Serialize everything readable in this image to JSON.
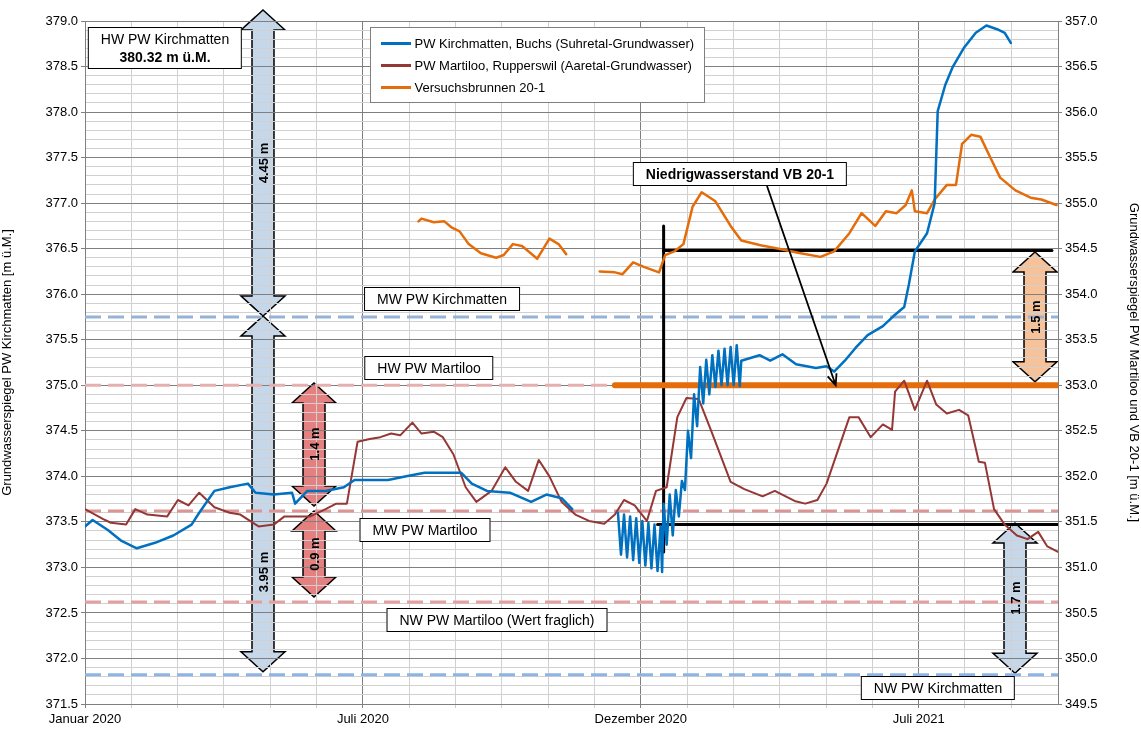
{
  "chart_data": {
    "type": "line",
    "xlabel": null,
    "ylabel": "Grundwasserspiegel PW Kirchmatten [m ü.M.]",
    "y2label": "Grundwasserspiegel PW Martiloo und VB 20-1 [m ü.M.]",
    "xlim": [
      "2020-01-01",
      "2021-10-01"
    ],
    "xticks": [
      {
        "value": "2020-01-01",
        "label": "Januar 2020"
      },
      {
        "value": "2020-01-31T10:00",
        "label": null
      },
      {
        "value": "2020-03-01T20:00",
        "label": null
      },
      {
        "value": "2020-04-01T06:00",
        "label": null
      },
      {
        "value": "2020-05-01T16:00",
        "label": null
      },
      {
        "value": "2020-06-01T02:00",
        "label": null
      },
      {
        "value": "2020-07-01T12:00",
        "label": "Juli 2020"
      },
      {
        "value": "2020-07-31T22:00",
        "label": null
      },
      {
        "value": "2020-08-31T08:00",
        "label": null
      },
      {
        "value": "2020-09-30T18:00",
        "label": null
      },
      {
        "value": "2020-10-31T04:00",
        "label": null
      },
      {
        "value": "2020-11-30T14:00",
        "label": null
      },
      {
        "value": "2020-12-31",
        "label": "Dezember 2020"
      },
      {
        "value": "2021-01-30T10:00",
        "label": null
      },
      {
        "value": "2021-03-01T20:00",
        "label": null
      },
      {
        "value": "2021-04-01T06:00",
        "label": null
      },
      {
        "value": "2021-05-01T16:00",
        "label": null
      },
      {
        "value": "2021-06-01T02:00",
        "label": null
      },
      {
        "value": "2021-07-01T12:00",
        "label": "Juli 2021"
      },
      {
        "value": "2021-07-31T22:00",
        "label": null
      },
      {
        "value": "2021-08-31T08:00",
        "label": null
      }
    ],
    "ylim": [
      371.5,
      379.0
    ],
    "yticks": [
      {
        "value": 371.5,
        "label": "371.5"
      },
      {
        "value": 371.6,
        "label": null
      },
      {
        "value": 371.7,
        "label": null
      },
      {
        "value": 371.8,
        "label": null
      },
      {
        "value": 371.9,
        "label": null
      },
      {
        "value": 372.0,
        "label": "372.0"
      },
      {
        "value": 372.1,
        "label": null
      },
      {
        "value": 372.2,
        "label": null
      },
      {
        "value": 372.3,
        "label": null
      },
      {
        "value": 372.4,
        "label": null
      },
      {
        "value": 372.5,
        "label": "372.5"
      },
      {
        "value": 372.6,
        "label": null
      },
      {
        "value": 372.7,
        "label": null
      },
      {
        "value": 372.8,
        "label": null
      },
      {
        "value": 372.9,
        "label": null
      },
      {
        "value": 373.0,
        "label": "373.0"
      },
      {
        "value": 373.1,
        "label": null
      },
      {
        "value": 373.2,
        "label": null
      },
      {
        "value": 373.3,
        "label": null
      },
      {
        "value": 373.4,
        "label": null
      },
      {
        "value": 373.5,
        "label": "373.5"
      },
      {
        "value": 373.6,
        "label": null
      },
      {
        "value": 373.7,
        "label": null
      },
      {
        "value": 373.8,
        "label": null
      },
      {
        "value": 373.9,
        "label": null
      },
      {
        "value": 374.0,
        "label": "374.0"
      },
      {
        "value": 374.1,
        "label": null
      },
      {
        "value": 374.2,
        "label": null
      },
      {
        "value": 374.3,
        "label": null
      },
      {
        "value": 374.4,
        "label": null
      },
      {
        "value": 374.5,
        "label": "374.5"
      },
      {
        "value": 374.6,
        "label": null
      },
      {
        "value": 374.7,
        "label": null
      },
      {
        "value": 374.8,
        "label": null
      },
      {
        "value": 374.9,
        "label": null
      },
      {
        "value": 375.0,
        "label": "375.0"
      },
      {
        "value": 375.1,
        "label": null
      },
      {
        "value": 375.2,
        "label": null
      },
      {
        "value": 375.3,
        "label": null
      },
      {
        "value": 375.4,
        "label": null
      },
      {
        "value": 375.5,
        "label": "375.5"
      },
      {
        "value": 375.6,
        "label": null
      },
      {
        "value": 375.7,
        "label": null
      },
      {
        "value": 375.8,
        "label": null
      },
      {
        "value": 375.9,
        "label": null
      },
      {
        "value": 376.0,
        "label": "376.0"
      },
      {
        "value": 376.1,
        "label": null
      },
      {
        "value": 376.2,
        "label": null
      },
      {
        "value": 376.3,
        "label": null
      },
      {
        "value": 376.4,
        "label": null
      },
      {
        "value": 376.5,
        "label": "376.5"
      },
      {
        "value": 376.6,
        "label": null
      },
      {
        "value": 376.7,
        "label": null
      },
      {
        "value": 376.8,
        "label": null
      },
      {
        "value": 376.9,
        "label": null
      },
      {
        "value": 377.0,
        "label": "377.0"
      },
      {
        "value": 377.1,
        "label": null
      },
      {
        "value": 377.2,
        "label": null
      },
      {
        "value": 377.3,
        "label": null
      },
      {
        "value": 377.4,
        "label": null
      },
      {
        "value": 377.5,
        "label": "377.5"
      },
      {
        "value": 377.6,
        "label": null
      },
      {
        "value": 377.7,
        "label": null
      },
      {
        "value": 377.8,
        "label": null
      },
      {
        "value": 377.9,
        "label": null
      },
      {
        "value": 378.0,
        "label": "378.0"
      },
      {
        "value": 378.1,
        "label": null
      },
      {
        "value": 378.2,
        "label": null
      },
      {
        "value": 378.3,
        "label": null
      },
      {
        "value": 378.4,
        "label": null
      },
      {
        "value": 378.5,
        "label": "378.5"
      },
      {
        "value": 378.6,
        "label": null
      },
      {
        "value": 378.7,
        "label": null
      },
      {
        "value": 378.8,
        "label": null
      },
      {
        "value": 378.9,
        "label": null
      },
      {
        "value": 379.0,
        "label": "379.0"
      }
    ],
    "y2lim": [
      349.5,
      357.0
    ],
    "y2ticks": [
      {
        "value": 349.5,
        "label": "349.5"
      },
      {
        "value": 350.0,
        "label": "350.0"
      },
      {
        "value": 350.5,
        "label": "350.5"
      },
      {
        "value": 351.0,
        "label": "351.0"
      },
      {
        "value": 351.5,
        "label": "351.5"
      },
      {
        "value": 352.0,
        "label": "352.0"
      },
      {
        "value": 352.5,
        "label": "352.5"
      },
      {
        "value": 353.0,
        "label": "353.0"
      },
      {
        "value": 353.5,
        "label": "353.5"
      },
      {
        "value": 354.0,
        "label": "354.0"
      },
      {
        "value": 354.5,
        "label": "354.5"
      },
      {
        "value": 355.0,
        "label": "355.0"
      },
      {
        "value": 355.5,
        "label": "355.5"
      },
      {
        "value": 356.0,
        "label": "356.0"
      },
      {
        "value": 356.5,
        "label": "356.5"
      },
      {
        "value": 357.0,
        "label": "357.0"
      }
    ],
    "grid": true,
    "legend": "top",
    "marker": "none",
    "line_style": "solid",
    "series": [
      {
        "name": "PW Kirchmatten, Buchs (Suhretal-Grundwasser)",
        "color": "#0070c0",
        "axis": "y",
        "x": [
          "2020-01-01",
          "2020-01-06",
          "2020-01-16",
          "2020-01-25",
          "2020-02-04",
          "2020-02-16",
          "2020-02-28",
          "2020-03-11",
          "2020-03-16",
          "2020-03-26",
          "2020-04-05",
          "2020-04-17",
          "2020-04-22",
          "2020-05-04",
          "2020-05-16",
          "2020-05-18",
          "2020-05-26",
          "2020-06-07",
          "2020-06-19",
          "2020-06-26",
          "2020-07-06",
          "2020-07-18",
          "2020-07-30",
          "2020-08-11",
          "2020-08-23",
          "2020-09-04",
          "2020-09-11",
          "2020-09-21",
          "2020-10-06",
          "2020-10-20",
          "2020-10-30",
          "2020-11-09",
          "2020-11-16",
          "2020-12-01",
          "2020-12-16",
          "2020-12-18",
          "2020-12-20",
          "2020-12-22",
          "2020-12-24",
          "2020-12-26",
          "2020-12-28",
          "2020-12-30",
          "2021-01-01",
          "2021-01-03",
          "2021-01-05",
          "2021-01-07",
          "2021-01-09",
          "2021-01-11",
          "2021-01-13",
          "2021-01-14",
          "2021-01-15",
          "2021-01-17",
          "2021-01-19",
          "2021-01-21",
          "2021-01-23",
          "2021-01-25",
          "2021-01-27",
          "2021-01-29",
          "2021-01-31",
          "2021-02-02",
          "2021-02-04",
          "2021-02-06",
          "2021-02-08",
          "2021-02-10",
          "2021-02-12",
          "2021-02-14",
          "2021-02-16",
          "2021-02-18",
          "2021-02-20",
          "2021-02-22",
          "2021-02-24",
          "2021-02-26",
          "2021-02-28",
          "2021-03-02",
          "2021-03-04",
          "2021-03-06",
          "2021-03-07",
          "2021-03-19",
          "2021-03-26",
          "2021-04-03",
          "2021-04-12",
          "2021-04-25",
          "2021-05-02",
          "2021-05-07",
          "2021-05-14",
          "2021-05-21",
          "2021-05-29",
          "2021-06-08",
          "2021-06-15",
          "2021-06-22",
          "2021-06-25",
          "2021-06-29",
          "2021-07-07",
          "2021-07-12",
          "2021-07-14",
          "2021-07-19",
          "2021-07-24",
          "2021-07-31",
          "2021-08-08",
          "2021-08-15",
          "2021-08-22",
          "2021-08-27",
          "2021-08-31"
        ],
        "values": [
          373.45,
          373.52,
          373.41,
          373.29,
          373.21,
          373.27,
          373.35,
          373.47,
          373.6,
          373.84,
          373.88,
          373.92,
          373.82,
          373.8,
          373.82,
          373.7,
          373.84,
          373.84,
          373.88,
          373.96,
          373.96,
          373.96,
          374.0,
          374.04,
          374.04,
          374.04,
          373.92,
          373.84,
          373.82,
          373.72,
          373.8,
          373.76,
          373.64,
          null,
          373.6,
          373.14,
          373.58,
          373.11,
          373.56,
          373.08,
          373.54,
          373.05,
          373.51,
          373.02,
          373.49,
          372.99,
          373.47,
          372.96,
          373.45,
          372.95,
          373.7,
          373.25,
          373.8,
          373.35,
          373.85,
          373.56,
          373.95,
          373.85,
          374.5,
          374.2,
          374.9,
          374.55,
          375.2,
          374.8,
          375.28,
          374.9,
          375.33,
          374.98,
          375.38,
          375.0,
          375.4,
          375.0,
          375.42,
          375.0,
          375.44,
          374.99,
          375.27,
          375.33,
          375.27,
          375.34,
          375.23,
          375.19,
          375.21,
          375.15,
          375.27,
          375.41,
          375.55,
          375.65,
          375.76,
          375.86,
          376.1,
          376.47,
          376.67,
          377.0,
          378.01,
          378.3,
          378.5,
          378.7,
          378.87,
          378.95,
          378.91,
          378.87,
          378.76
        ]
      },
      {
        "name": "PW Martiloo, Rupperswil (Aaretal-Grundwasser)",
        "color": "#953735",
        "axis": "y2",
        "x": [
          "2020-01-01",
          "2020-01-13",
          "2020-01-18",
          "2020-01-28",
          "2020-02-03",
          "2020-02-11",
          "2020-02-24",
          "2020-03-02",
          "2020-03-09",
          "2020-03-16",
          "2020-03-26",
          "2020-04-05",
          "2020-04-12",
          "2020-04-24",
          "2020-05-04",
          "2020-05-11",
          "2020-05-28",
          "2020-06-07",
          "2020-06-14",
          "2020-06-21",
          "2020-06-28",
          "2020-07-06",
          "2020-07-13",
          "2020-07-20",
          "2020-07-26",
          "2020-08-03",
          "2020-08-09",
          "2020-08-17",
          "2020-08-23",
          "2020-08-30",
          "2020-09-07",
          "2020-09-14",
          "2020-09-24",
          "2020-10-03",
          "2020-10-10",
          "2020-10-18",
          "2020-10-25",
          "2020-11-01",
          "2020-11-09",
          "2020-11-18",
          "2020-11-27",
          "2020-12-07",
          "2020-12-14",
          "2020-12-20",
          "2020-12-27",
          "2021-01-04",
          "2021-01-10",
          "2021-01-17",
          "2021-01-24",
          "2021-01-30",
          "2021-02-07",
          "2021-02-15",
          "2021-02-28",
          "2021-03-09",
          "2021-03-21",
          "2021-03-29",
          "2021-04-11",
          "2021-04-18",
          "2021-04-26",
          "2021-05-02",
          "2021-05-17",
          "2021-05-23",
          "2021-05-31",
          "2021-06-08",
          "2021-06-14",
          "2021-06-16",
          "2021-06-22",
          "2021-06-29",
          "2021-07-07",
          "2021-07-13",
          "2021-07-20",
          "2021-07-28",
          "2021-08-03",
          "2021-08-10",
          "2021-08-14",
          "2021-08-20",
          "2021-08-27",
          "2021-09-04",
          "2021-09-11",
          "2021-09-18",
          "2021-09-24",
          "2021-10-01"
        ],
        "values": [
          351.64,
          351.53,
          351.49,
          351.47,
          351.64,
          351.58,
          351.56,
          351.74,
          351.68,
          351.82,
          351.66,
          351.6,
          351.58,
          351.45,
          351.47,
          351.56,
          351.56,
          351.64,
          351.7,
          351.7,
          352.38,
          352.41,
          352.43,
          352.47,
          352.45,
          352.59,
          352.47,
          352.49,
          352.43,
          352.24,
          351.88,
          351.72,
          351.84,
          352.1,
          351.94,
          351.84,
          352.18,
          352.0,
          351.72,
          351.58,
          351.51,
          351.48,
          351.58,
          351.74,
          351.68,
          351.51,
          351.84,
          351.88,
          352.65,
          352.86,
          352.85,
          352.51,
          351.94,
          351.86,
          351.78,
          351.84,
          351.73,
          351.7,
          351.74,
          351.92,
          352.65,
          352.65,
          352.43,
          352.57,
          352.51,
          352.93,
          353.05,
          352.73,
          353.05,
          352.79,
          352.69,
          352.73,
          352.67,
          352.16,
          352.15,
          351.64,
          351.47,
          351.35,
          351.31,
          351.39,
          351.23,
          351.17
        ]
      },
      {
        "name": "Versuchsbrunnen 20-1",
        "color": "#e46c0a",
        "axis": "y2",
        "x": [
          "2020-08-07",
          "2020-08-09",
          "2020-08-17",
          "2020-08-24",
          "2020-08-29",
          "2020-09-03",
          "2020-09-09",
          "2020-09-17",
          "2020-09-27",
          "2020-10-02",
          "2020-10-08",
          "2020-10-14",
          "2020-10-24",
          "2020-11-01",
          "2020-11-07",
          "2020-11-12",
          "2020-11-23",
          "2020-12-04",
          "2020-12-14",
          "2020-12-19",
          "2020-12-26",
          "2021-01-02",
          "2021-01-12",
          "2021-01-16",
          "2021-01-22",
          "2021-01-28",
          "2021-02-03",
          "2021-02-09",
          "2021-02-18",
          "2021-02-28",
          "2021-03-07",
          "2021-03-19",
          "2021-04-03",
          "2021-04-15",
          "2021-04-28",
          "2021-05-07",
          "2021-05-17",
          "2021-05-25",
          "2021-06-03",
          "2021-06-10",
          "2021-06-17",
          "2021-06-23",
          "2021-06-27",
          "2021-06-29",
          "2021-07-07",
          "2021-07-12",
          "2021-07-20",
          "2021-07-26",
          "2021-07-30",
          "2021-08-05",
          "2021-08-11",
          "2021-08-17",
          "2021-08-24",
          "2021-09-03",
          "2021-09-13",
          "2021-09-20",
          "2021-09-30"
        ],
        "values": [
          354.8,
          354.83,
          354.79,
          354.8,
          354.73,
          354.69,
          354.55,
          354.45,
          354.4,
          354.43,
          354.55,
          354.53,
          354.39,
          354.61,
          354.55,
          354.44,
          null,
          354.25,
          354.24,
          354.22,
          354.35,
          354.3,
          354.24,
          354.43,
          354.47,
          354.55,
          354.96,
          355.12,
          355.02,
          354.75,
          354.59,
          354.54,
          354.49,
          354.45,
          354.41,
          354.47,
          354.67,
          354.89,
          354.75,
          354.91,
          354.89,
          354.98,
          355.14,
          354.91,
          354.89,
          355.04,
          355.2,
          355.2,
          355.65,
          355.75,
          355.73,
          355.52,
          355.28,
          355.14,
          355.06,
          355.04,
          354.98
        ]
      },
      {
        "color": "#e46c0a",
        "axis": "y2",
        "x": [
          "2020-12-14",
          "2021-10-01"
        ],
        "values": [
          353.0,
          353.0
        ]
      },
      {
        "color": "#000000",
        "axis": "y2",
        "x": [
          "2021-01-15",
          "2021-09-27"
        ],
        "values": [
          354.48,
          354.48
        ]
      },
      {
        "color": "#000000",
        "axis": "y2",
        "x": [
          "2021-01-15",
          "2021-01-15"
        ],
        "values": [
          354.75,
          351.17
        ]
      },
      {
        "color": "#000000",
        "axis": "y2",
        "x": [
          "2021-01-11",
          "2021-10-01"
        ],
        "values": [
          351.47,
          351.47
        ]
      }
    ],
    "ref_lines": [
      {
        "axis": "y",
        "value": 375.75,
        "label": "MW PW Kirchmatten",
        "color": "#95b3d7",
        "line_style": "dashed"
      },
      {
        "axis": "y2",
        "value": 353.0,
        "label": "HW PW Martiloo",
        "color": "#e6b0b0",
        "line_style": "dashed"
      },
      {
        "axis": "y2",
        "value": 351.62,
        "label": "MW PW Martiloo",
        "color": "#d99694",
        "line_style": "dashed"
      },
      {
        "axis": "y2",
        "value": 350.62,
        "label": "NW PW Martiloo (Wert fraglich)",
        "color": "#e4a0a0",
        "line_style": "dashed"
      },
      {
        "axis": "y",
        "value": 371.82,
        "label": "NW PW Kirchmatten",
        "color": "#8eb4e3",
        "line_style": "dashed"
      }
    ],
    "annotations": [
      "HW PW Kirchmatten",
      "380.32 m ü.M.",
      "4.45 m",
      "3.95 m",
      "1.4 m",
      "0.9 m",
      "1.5 m",
      "1.7 m",
      {
        "text": "Niedrigwasserstand VB 20-1",
        "x": "2021-05-08",
        "y": 375.0
      }
    ]
  }
}
